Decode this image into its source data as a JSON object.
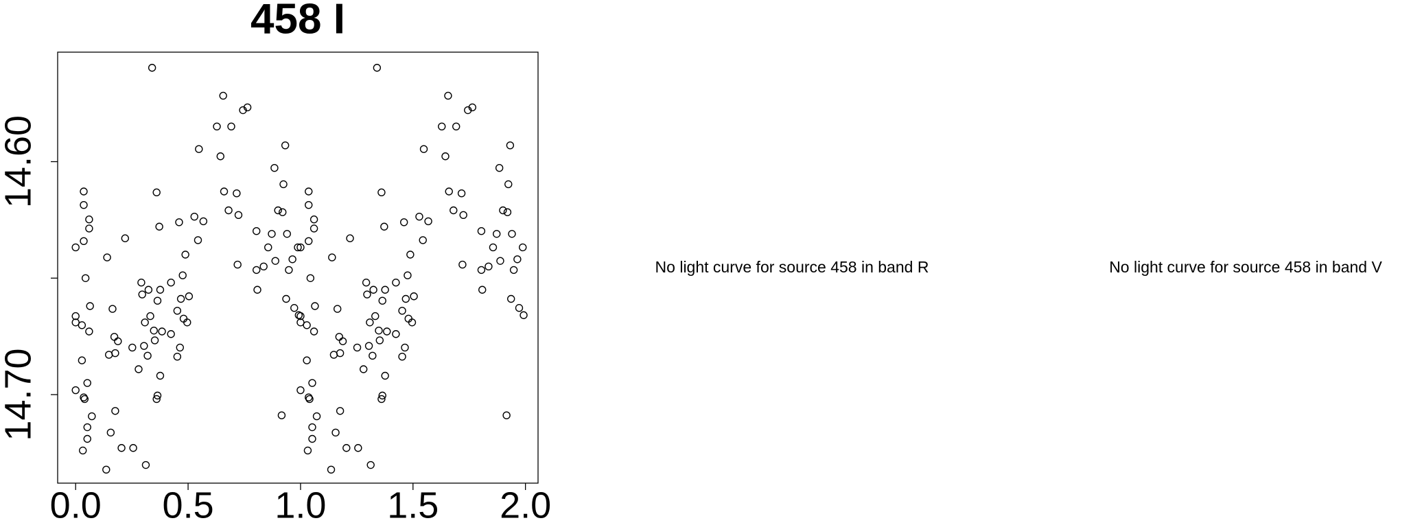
{
  "chart_data": {
    "type": "scatter",
    "title": "458 I",
    "x": [
      0.0,
      0.0,
      0.0,
      0.0,
      0.028,
      0.036,
      0.036,
      0.036,
      0.028,
      0.044,
      0.036,
      0.04,
      0.032,
      0.052,
      0.052,
      0.052,
      0.06,
      0.06,
      0.064,
      0.06,
      0.072,
      0.14,
      0.136,
      0.148,
      0.156,
      0.164,
      0.172,
      0.176,
      0.176,
      0.188,
      0.204,
      0.22,
      0.252,
      0.256,
      0.28,
      0.292,
      0.296,
      0.304,
      0.308,
      0.312,
      0.32,
      0.324,
      0.332,
      0.34,
      0.348,
      0.352,
      0.36,
      0.36,
      0.364,
      0.364,
      0.372,
      0.376,
      0.376,
      0.384,
      0.424,
      0.424,
      0.452,
      0.452,
      0.46,
      0.464,
      0.468,
      0.476,
      0.48,
      0.488,
      0.496,
      0.504,
      0.528,
      0.544,
      0.548,
      0.568,
      0.628,
      0.644,
      0.656,
      0.66,
      0.68,
      0.692,
      0.716,
      0.72,
      0.724,
      0.744,
      0.764,
      0.804,
      0.804,
      0.808,
      0.836,
      0.856,
      0.872,
      0.884,
      0.888,
      0.9,
      0.92,
      0.924,
      0.932,
      0.936,
      0.94,
      0.948,
      0.964,
      0.972,
      0.988,
      0.992,
      0.916,
      1.0,
      1.0,
      1.0,
      1.0,
      1.028,
      1.036,
      1.036,
      1.036,
      1.028,
      1.044,
      1.036,
      1.04,
      1.032,
      1.052,
      1.052,
      1.052,
      1.06,
      1.06,
      1.064,
      1.06,
      1.072,
      1.14,
      1.136,
      1.148,
      1.156,
      1.164,
      1.172,
      1.176,
      1.176,
      1.188,
      1.204,
      1.22,
      1.252,
      1.256,
      1.28,
      1.292,
      1.296,
      1.304,
      1.308,
      1.312,
      1.32,
      1.324,
      1.332,
      1.34,
      1.348,
      1.352,
      1.36,
      1.36,
      1.364,
      1.364,
      1.372,
      1.376,
      1.376,
      1.384,
      1.424,
      1.424,
      1.452,
      1.452,
      1.46,
      1.464,
      1.468,
      1.476,
      1.48,
      1.488,
      1.496,
      1.504,
      1.528,
      1.544,
      1.548,
      1.568,
      1.628,
      1.644,
      1.656,
      1.66,
      1.68,
      1.692,
      1.716,
      1.72,
      1.724,
      1.744,
      1.764,
      1.804,
      1.804,
      1.808,
      1.836,
      1.856,
      1.872,
      1.884,
      1.888,
      1.9,
      1.92,
      1.924,
      1.932,
      1.936,
      1.94,
      1.948,
      1.964,
      1.972,
      1.988,
      1.992,
      1.916
    ],
    "values": [
      14.6368,
      14.6663,
      14.669,
      14.6981,
      14.6702,
      14.6341,
      14.6128,
      14.6186,
      14.6853,
      14.65,
      14.7012,
      14.7019,
      14.724,
      14.695,
      14.714,
      14.719,
      14.6248,
      14.6287,
      14.662,
      14.6729,
      14.7093,
      14.6411,
      14.7322,
      14.6829,
      14.7163,
      14.6632,
      14.6752,
      14.6822,
      14.707,
      14.6771,
      14.7229,
      14.6329,
      14.6798,
      14.7229,
      14.6891,
      14.6519,
      14.657,
      14.6791,
      14.669,
      14.7302,
      14.6833,
      14.655,
      14.6663,
      14.5597,
      14.6725,
      14.6767,
      14.6132,
      14.7019,
      14.6597,
      14.7004,
      14.6279,
      14.655,
      14.6919,
      14.6729,
      14.674,
      14.6519,
      14.664,
      14.6837,
      14.626,
      14.6798,
      14.6589,
      14.6488,
      14.6674,
      14.6399,
      14.669,
      14.6578,
      14.6236,
      14.6337,
      14.5946,
      14.6256,
      14.5849,
      14.5977,
      14.5717,
      14.6128,
      14.6209,
      14.5849,
      14.6136,
      14.6442,
      14.6229,
      14.5779,
      14.5767,
      14.6298,
      14.6465,
      14.655,
      14.645,
      14.6368,
      14.631,
      14.6027,
      14.6426,
      14.6209,
      14.6217,
      14.6097,
      14.593,
      14.6589,
      14.631,
      14.6465,
      14.6419,
      14.6628,
      14.6368,
      14.6659,
      14.7089,
      14.6368,
      14.6663,
      14.669,
      14.6981,
      14.6702,
      14.6341,
      14.6128,
      14.6186,
      14.6853,
      14.65,
      14.7012,
      14.7019,
      14.724,
      14.695,
      14.714,
      14.719,
      14.6248,
      14.6287,
      14.662,
      14.6729,
      14.7093,
      14.6411,
      14.7322,
      14.6829,
      14.7163,
      14.6632,
      14.6752,
      14.6822,
      14.707,
      14.6771,
      14.7229,
      14.6329,
      14.6798,
      14.7229,
      14.6891,
      14.6519,
      14.657,
      14.6791,
      14.669,
      14.7302,
      14.6833,
      14.655,
      14.6663,
      14.5597,
      14.6725,
      14.6767,
      14.6132,
      14.7019,
      14.6597,
      14.7004,
      14.6279,
      14.655,
      14.6919,
      14.6729,
      14.674,
      14.6519,
      14.664,
      14.6837,
      14.626,
      14.6798,
      14.6589,
      14.6488,
      14.6674,
      14.6399,
      14.669,
      14.6578,
      14.6236,
      14.6337,
      14.5946,
      14.6256,
      14.5849,
      14.5977,
      14.5717,
      14.6128,
      14.6209,
      14.5849,
      14.6136,
      14.6442,
      14.6229,
      14.5779,
      14.5767,
      14.6298,
      14.6465,
      14.655,
      14.645,
      14.6368,
      14.631,
      14.6027,
      14.6426,
      14.6209,
      14.6217,
      14.6097,
      14.593,
      14.6589,
      14.631,
      14.6465,
      14.6419,
      14.6628,
      14.6368,
      14.6659,
      14.7089
    ],
    "color": "#000000",
    "xlim": [
      -0.08,
      2.056
    ],
    "ylim": [
      14.738,
      14.553
    ],
    "xticks": [
      {
        "value": 0,
        "label": "0.0"
      },
      {
        "value": 0.5,
        "label": "0.5"
      },
      {
        "value": 1,
        "label": "1.0"
      },
      {
        "value": 1.5,
        "label": "1.5"
      },
      {
        "value": 2,
        "label": "2.0"
      }
    ],
    "yticks": [
      {
        "value": 14.6,
        "label": "14.60"
      },
      {
        "value": 14.65,
        "label": null
      },
      {
        "value": 14.7,
        "label": "14.70"
      }
    ]
  },
  "messages": [
    "No light curve for source 458 in band R",
    "No light curve for source 458 in band V"
  ]
}
